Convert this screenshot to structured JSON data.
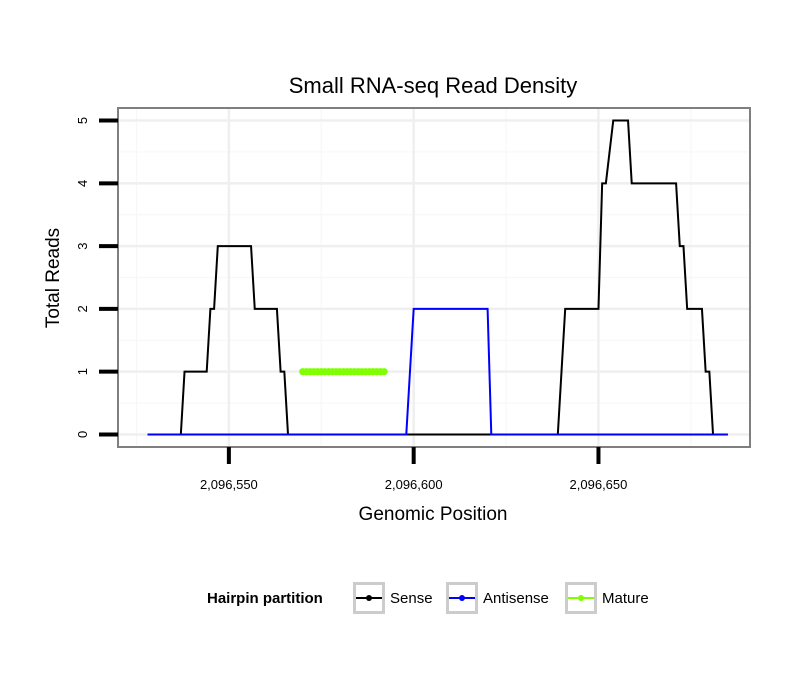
{
  "chart_data": {
    "type": "line",
    "title": "Small RNA-seq Read Density",
    "xlabel": "Genomic Position",
    "ylabel": "Total Reads",
    "xlim": [
      2096520,
      2096691
    ],
    "ylim": [
      -0.2,
      5.2
    ],
    "x_ticks": [
      2096550,
      2096600,
      2096650
    ],
    "x_tick_labels": [
      "2,096,550",
      "2,096,600",
      "2,096,650"
    ],
    "y_ticks": [
      0,
      1,
      2,
      3,
      4,
      5
    ],
    "y_tick_labels": [
      "0",
      "1",
      "2",
      "3",
      "4",
      "5"
    ],
    "grid": true,
    "legend": {
      "title": "Hairpin partition",
      "position": "bottom",
      "entries": [
        {
          "label": "Sense",
          "color": "#000000"
        },
        {
          "label": "Antisense",
          "color": "#0000ff"
        },
        {
          "label": "Mature",
          "color": "#7fff00"
        }
      ]
    },
    "series": [
      {
        "name": "Sense",
        "color": "#000000",
        "markers": false,
        "x": [
          2096528,
          2096537,
          2096538,
          2096544,
          2096545,
          2096546,
          2096547,
          2096556,
          2096557,
          2096563,
          2096564,
          2096565,
          2096566,
          2096567,
          2096569,
          2096593,
          2096594,
          2096621,
          2096622,
          2096639,
          2096641,
          2096650,
          2096651,
          2096652,
          2096654,
          2096658,
          2096659,
          2096663,
          2096664,
          2096665,
          2096671,
          2096672,
          2096673,
          2096674,
          2096676,
          2096678,
          2096679,
          2096680,
          2096681,
          2096683,
          2096685
        ],
        "y": [
          0,
          0,
          1,
          1,
          2,
          2,
          3,
          3,
          2,
          2,
          1,
          1,
          0,
          0,
          0,
          0,
          0,
          0,
          0,
          0,
          2,
          2,
          4,
          4,
          5,
          5,
          4,
          4,
          4,
          4,
          4,
          3,
          3,
          2,
          2,
          2,
          1,
          1,
          0,
          0,
          0
        ]
      },
      {
        "name": "Antisense",
        "color": "#0000ff",
        "markers": false,
        "x": [
          2096528,
          2096598,
          2096600,
          2096620,
          2096621,
          2096685
        ],
        "y": [
          0,
          0,
          2,
          2,
          0,
          0
        ]
      },
      {
        "name": "Mature",
        "color": "#7fff00",
        "markers": true,
        "x": [
          2096570,
          2096571,
          2096572,
          2096573,
          2096574,
          2096575,
          2096576,
          2096577,
          2096578,
          2096579,
          2096580,
          2096581,
          2096582,
          2096583,
          2096584,
          2096585,
          2096586,
          2096587,
          2096588,
          2096589,
          2096590,
          2096591,
          2096592
        ],
        "y": [
          1,
          1,
          1,
          1,
          1,
          1,
          1,
          1,
          1,
          1,
          1,
          1,
          1,
          1,
          1,
          1,
          1,
          1,
          1,
          1,
          1,
          1,
          1
        ]
      }
    ]
  }
}
